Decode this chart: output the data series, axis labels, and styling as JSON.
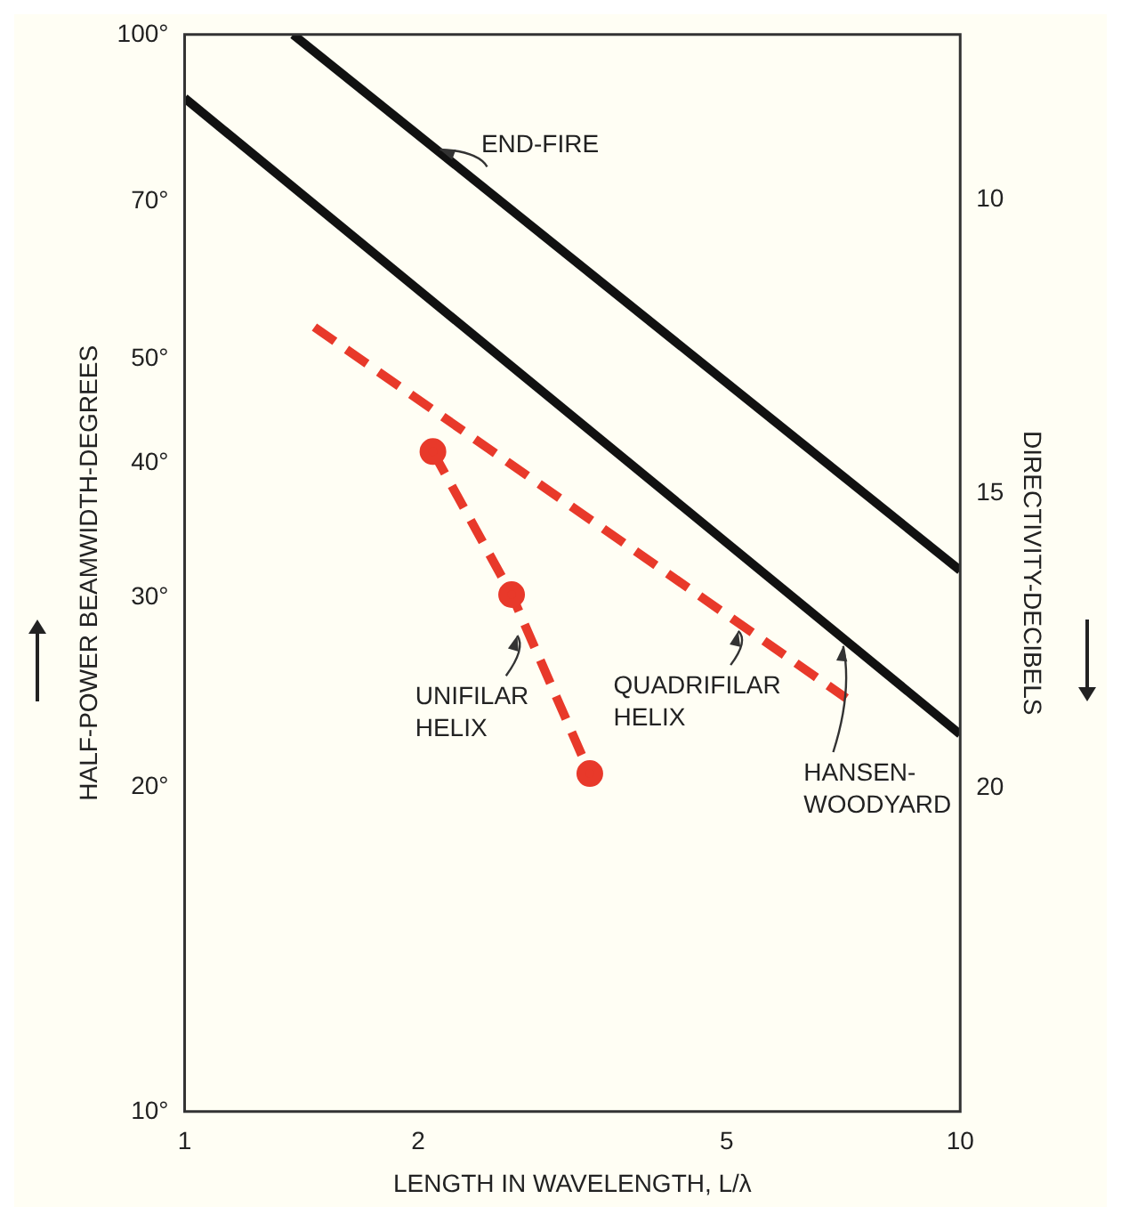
{
  "chart_data": {
    "type": "line",
    "xlabel": "LENGTH IN WAVELENGTH, L/λ",
    "ylabel": "HALF-POWER BEAMWIDTH-DEGREES",
    "y2label": "DIRECTIVITY-DECIBELS",
    "log": "xy",
    "xlim": [
      1,
      10
    ],
    "xticks": [
      1,
      2,
      5,
      10
    ],
    "ylim": [
      10,
      100
    ],
    "yticks": [
      {
        "value": 10,
        "label": "10°"
      },
      {
        "value": 20,
        "label": "20°"
      },
      {
        "value": 30,
        "label": "30°"
      },
      {
        "value": 40,
        "label": "40°"
      },
      {
        "value": 50,
        "label": "50°"
      },
      {
        "value": 70,
        "label": "70°"
      },
      {
        "value": 100,
        "label": "100°"
      }
    ],
    "y2lim": [
      25.5,
      7.2
    ],
    "y2ticks": [
      10,
      15,
      20
    ],
    "grid": false,
    "legend": false,
    "series": [
      {
        "name": "END-FIRE",
        "color": "#111111",
        "x": [
          1.38,
          10
        ],
        "values": [
          100,
          31.8
        ],
        "line_style": "solid",
        "marker": "none"
      },
      {
        "name": "HANSEN-WOODYARD",
        "color": "#111111",
        "x": [
          1,
          10
        ],
        "values": [
          87.3,
          22.4
        ],
        "line_style": "solid",
        "marker": "none"
      },
      {
        "name": "UNIFILAR HELIX",
        "color": "#e8392a",
        "x": [
          2.09,
          2.64,
          3.33
        ],
        "values": [
          41,
          30.2,
          20.6
        ],
        "line_style": "dashed",
        "marker": "circle"
      },
      {
        "name": "QUADRIFILAR HELIX",
        "color": "#e8392a",
        "x": [
          1.47,
          7.13
        ],
        "values": [
          53.5,
          24.2
        ],
        "line_style": "dashed",
        "marker": "none"
      }
    ]
  }
}
